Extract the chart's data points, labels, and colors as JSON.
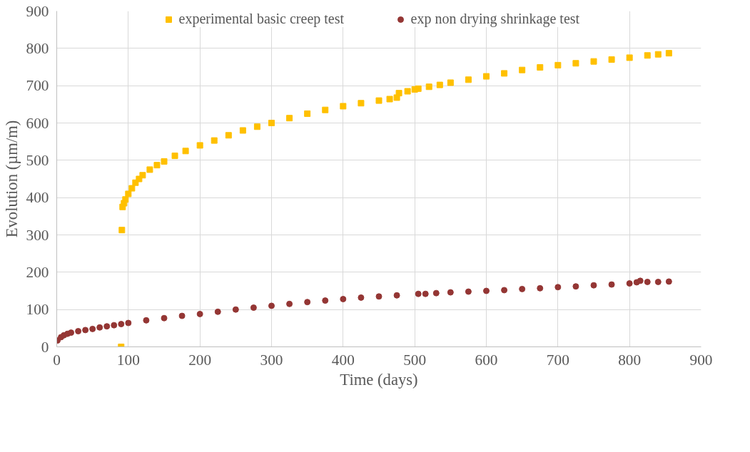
{
  "chart_data": {
    "type": "scatter",
    "xlabel": "Time (days)",
    "ylabel": "Evolution (µm/m)",
    "xlim": [
      0,
      900
    ],
    "ylim": [
      0,
      900
    ],
    "xticks": [
      0,
      100,
      200,
      300,
      400,
      500,
      600,
      700,
      800,
      900
    ],
    "yticks": [
      0,
      100,
      200,
      300,
      400,
      500,
      600,
      700,
      800,
      900
    ],
    "grid": true,
    "legend": "top",
    "series": [
      {
        "name": "experimental basic creep test",
        "color": "#ffc000",
        "marker": "square",
        "x": [
          90,
          91,
          92,
          94,
          96,
          100,
          105,
          110,
          115,
          120,
          130,
          140,
          150,
          165,
          180,
          200,
          220,
          240,
          260,
          280,
          300,
          325,
          350,
          375,
          400,
          425,
          450,
          465,
          475,
          478,
          490,
          500,
          505,
          520,
          535,
          550,
          575,
          600,
          625,
          650,
          675,
          700,
          725,
          750,
          775,
          800,
          825,
          840,
          855
        ],
        "values": [
          0,
          313,
          375,
          385,
          395,
          410,
          425,
          440,
          450,
          460,
          475,
          487,
          497,
          512,
          525,
          540,
          553,
          567,
          580,
          590,
          600,
          613,
          625,
          635,
          645,
          653,
          660,
          664,
          668,
          680,
          685,
          690,
          692,
          697,
          702,
          708,
          716,
          725,
          733,
          742,
          749,
          755,
          760,
          765,
          770,
          775,
          781,
          784,
          787
        ]
      },
      {
        "name": "exp non drying shrinkage test",
        "color": "#943634",
        "marker": "circle",
        "x": [
          1,
          6,
          10,
          15,
          20,
          30,
          40,
          50,
          60,
          70,
          80,
          90,
          100,
          125,
          150,
          175,
          200,
          225,
          250,
          275,
          300,
          325,
          350,
          375,
          400,
          425,
          450,
          475,
          505,
          515,
          530,
          550,
          575,
          600,
          625,
          650,
          675,
          700,
          725,
          750,
          775,
          800,
          810,
          815,
          825,
          840,
          855
        ],
        "values": [
          17,
          26,
          31,
          35,
          38,
          42,
          45,
          48,
          52,
          55,
          58,
          61,
          64,
          71,
          77,
          83,
          88,
          94,
          100,
          105,
          110,
          115,
          120,
          124,
          128,
          132,
          135,
          138,
          142,
          142,
          144,
          146,
          148,
          150,
          152,
          155,
          157,
          160,
          162,
          165,
          167,
          170,
          173,
          177,
          174,
          174,
          175
        ]
      }
    ]
  }
}
